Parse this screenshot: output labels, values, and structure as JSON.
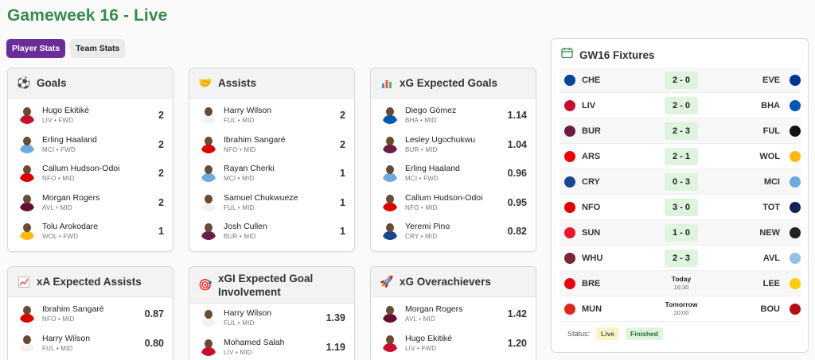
{
  "page": {
    "title": "Gameweek 16 - Live"
  },
  "tabs": [
    {
      "label": "Player Stats",
      "active": true
    },
    {
      "label": "Team Stats",
      "active": false
    }
  ],
  "cards": {
    "goals": {
      "title": "Goals",
      "icon": "soccer-ball-icon",
      "rows": [
        {
          "name": "Hugo Ekitiké",
          "meta": "LIV • FWD",
          "value": "2",
          "shirt": "#c8102e"
        },
        {
          "name": "Erling Haaland",
          "meta": "MCI • FWD",
          "value": "2",
          "shirt": "#6cabdd"
        },
        {
          "name": "Callum Hudson-Odoi",
          "meta": "NFO • MID",
          "value": "2",
          "shirt": "#dd0000"
        },
        {
          "name": "Morgan Rogers",
          "meta": "AVL • MID",
          "value": "2",
          "shirt": "#670e36"
        },
        {
          "name": "Tolu Arokodare",
          "meta": "WOL • FWD",
          "value": "1",
          "shirt": "#fdb913"
        }
      ]
    },
    "assists": {
      "title": "Assists",
      "icon": "handshake-icon",
      "rows": [
        {
          "name": "Harry Wilson",
          "meta": "FUL • MID",
          "value": "2",
          "shirt": "#f2f2f2"
        },
        {
          "name": "Ibrahim Sangaré",
          "meta": "NFO • MID",
          "value": "2",
          "shirt": "#dd0000"
        },
        {
          "name": "Rayan Cherki",
          "meta": "MCI • MID",
          "value": "1",
          "shirt": "#6cabdd"
        },
        {
          "name": "Samuel Chukwueze",
          "meta": "FUL • MID",
          "value": "1",
          "shirt": "#f2f2f2"
        },
        {
          "name": "Josh Cullen",
          "meta": "BUR • MID",
          "value": "1",
          "shirt": "#6c1d45"
        }
      ]
    },
    "xg": {
      "title": "xG Expected Goals",
      "icon": "bar-chart-icon",
      "rows": [
        {
          "name": "Diego Gómez",
          "meta": "BHA • MID",
          "value": "1.14",
          "shirt": "#0057b8"
        },
        {
          "name": "Lesley Ugochukwu",
          "meta": "BUR • MID",
          "value": "1.04",
          "shirt": "#6c1d45"
        },
        {
          "name": "Erling Haaland",
          "meta": "MCI • FWD",
          "value": "0.96",
          "shirt": "#6cabdd"
        },
        {
          "name": "Callum Hudson-Odoi",
          "meta": "NFO • MID",
          "value": "0.95",
          "shirt": "#dd0000"
        },
        {
          "name": "Yeremi Pino",
          "meta": "CRY • MID",
          "value": "0.82",
          "shirt": "#1b458f"
        }
      ]
    },
    "xa": {
      "title": "xA Expected Assists",
      "icon": "trend-chart-icon",
      "rows": [
        {
          "name": "Ibrahim Sangaré",
          "meta": "NFO • MID",
          "value": "0.87",
          "shirt": "#dd0000"
        },
        {
          "name": "Harry Wilson",
          "meta": "FUL • MID",
          "value": "0.80",
          "shirt": "#f2f2f2"
        }
      ]
    },
    "xgi": {
      "title": "xGI Expected Goal Involvement",
      "icon": "target-icon",
      "rows": [
        {
          "name": "Harry Wilson",
          "meta": "FUL • MID",
          "value": "1.39",
          "shirt": "#f2f2f2"
        },
        {
          "name": "Mohamed Salah",
          "meta": "LIV • MID",
          "value": "1.19",
          "shirt": "#c8102e"
        }
      ]
    },
    "over": {
      "title": "xG Overachievers",
      "icon": "rocket-icon",
      "rows": [
        {
          "name": "Morgan Rogers",
          "meta": "AVL • MID",
          "value": "1.42",
          "shirt": "#670e36"
        },
        {
          "name": "Hugo Ekitiké",
          "meta": "LIV • FWD",
          "value": "1.20",
          "shirt": "#c8102e"
        }
      ]
    }
  },
  "fixtures": {
    "title": "GW16 Fixtures",
    "icon": "calendar-icon",
    "rows": [
      {
        "home": "CHE",
        "away": "EVE",
        "score": "2 - 0",
        "hc": "#034694",
        "ac": "#003399"
      },
      {
        "home": "LIV",
        "away": "BHA",
        "score": "2 - 0",
        "hc": "#c8102e",
        "ac": "#0057b8"
      },
      {
        "home": "BUR",
        "away": "FUL",
        "score": "2 - 3",
        "hc": "#6c1d45",
        "ac": "#111111"
      },
      {
        "home": "ARS",
        "away": "WOL",
        "score": "2 - 1",
        "hc": "#ef0107",
        "ac": "#fdb913"
      },
      {
        "home": "CRY",
        "away": "MCI",
        "score": "0 - 3",
        "hc": "#1b458f",
        "ac": "#6cabdd"
      },
      {
        "home": "NFO",
        "away": "TOT",
        "score": "3 - 0",
        "hc": "#dd0000",
        "ac": "#132257"
      },
      {
        "home": "SUN",
        "away": "NEW",
        "score": "1 - 0",
        "hc": "#eb172b",
        "ac": "#241f20"
      },
      {
        "home": "WHU",
        "away": "AVL",
        "score": "2 - 3",
        "hc": "#7a263a",
        "ac": "#95bfe5"
      },
      {
        "home": "BRE",
        "away": "LEE",
        "day": "Today",
        "time": "16:30",
        "hc": "#e30613",
        "ac": "#ffcd00"
      },
      {
        "home": "MUN",
        "away": "BOU",
        "day": "Tomorrow",
        "time": "20:00",
        "hc": "#da291c",
        "ac": "#b50e12"
      }
    ],
    "status_label": "Status:",
    "status_live": "Live",
    "status_finished": "Finished"
  }
}
